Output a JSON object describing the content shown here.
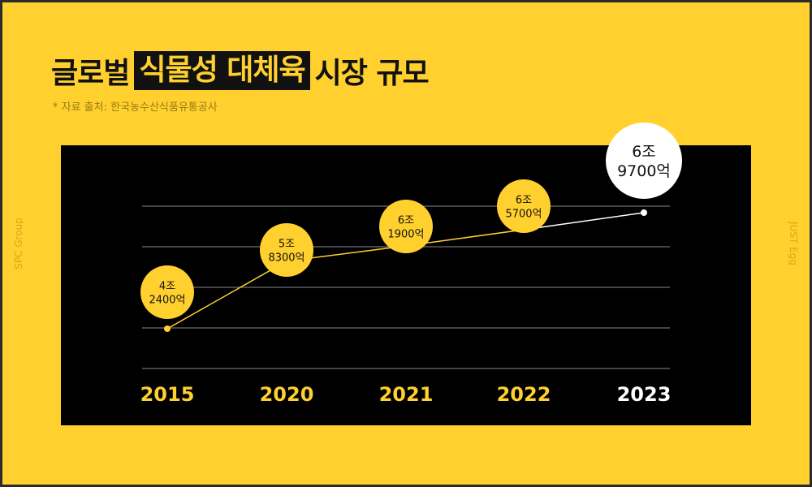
{
  "title": {
    "prefix": "글로벌",
    "highlight": "식물성 대체육",
    "suffix": "시장 규모"
  },
  "source": "* 자료 출처: 한국농수산식품유통공사",
  "side_left": "SPC Group",
  "side_right": "JUST Egg",
  "colors": {
    "background": "#FFD02E",
    "panel": "#000000",
    "accent": "#FFD02E",
    "highlight_point": "#FFFFFF"
  },
  "chart_data": {
    "type": "line",
    "title": "글로벌 식물성 대체육 시장 규모",
    "categories": [
      "2015",
      "2020",
      "2021",
      "2022",
      "2023"
    ],
    "values": [
      42400,
      58300,
      61900,
      65700,
      69700
    ],
    "value_unit": "억",
    "data_labels": [
      [
        "4조",
        "2400억"
      ],
      [
        "5조",
        "8300억"
      ],
      [
        "6조",
        "1900억"
      ],
      [
        "6조",
        "5700억"
      ],
      [
        "6조",
        "9700억"
      ]
    ],
    "highlight_index": 4,
    "grid": true,
    "legend": "none"
  }
}
